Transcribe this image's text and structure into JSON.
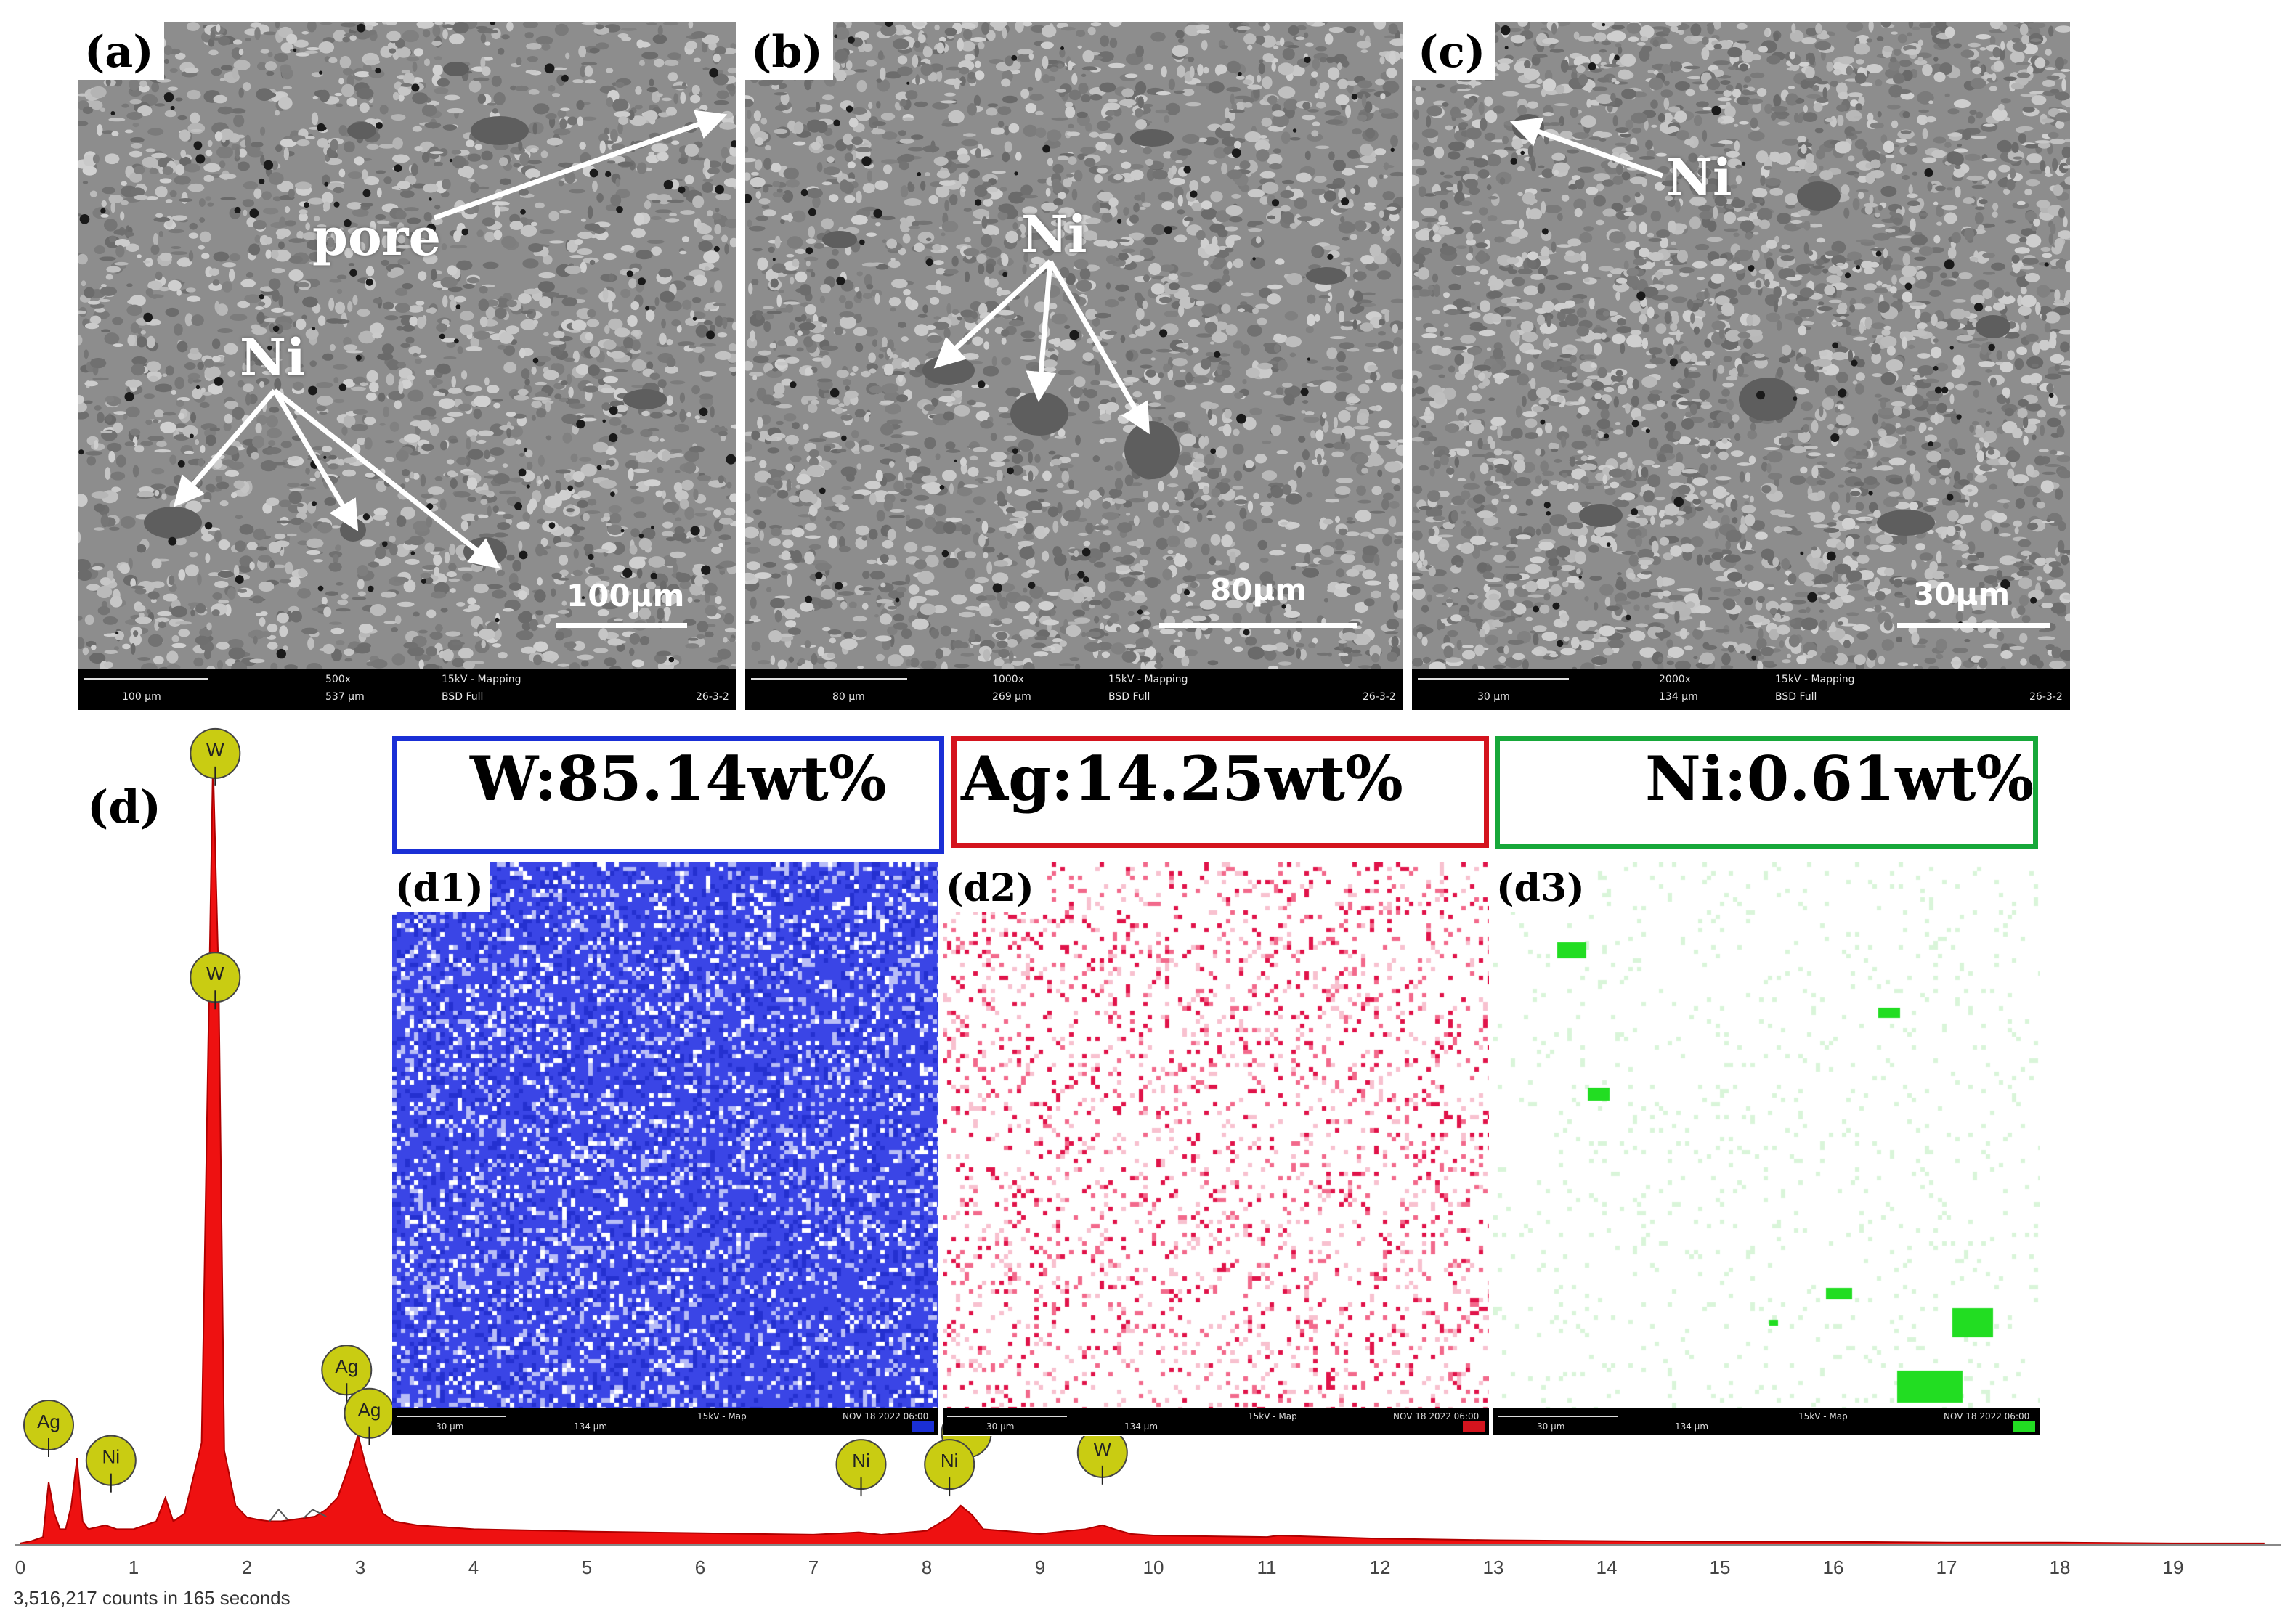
{
  "panels": {
    "a": {
      "label": "(a)",
      "scale_label": "100μm",
      "bar_left": "100 μm",
      "bar_mag": "500x",
      "bar_hfw": "537 μm",
      "bar_kv": "15kV - Mapping",
      "bar_det": "BSD Full",
      "bar_id": "26-3-2",
      "annotations": {
        "pore": "pore",
        "ni": "Ni"
      }
    },
    "b": {
      "label": "(b)",
      "scale_label": "80μm",
      "bar_left": "80 μm",
      "bar_mag": "1000x",
      "bar_hfw": "269 μm",
      "bar_kv": "15kV - Mapping",
      "bar_det": "BSD Full",
      "bar_id": "26-3-2",
      "annotations": {
        "ni": "Ni"
      }
    },
    "c": {
      "label": "(c)",
      "scale_label": "30μm",
      "bar_left": "30 μm",
      "bar_mag": "2000x",
      "bar_hfw": "134 μm",
      "bar_kv": "15kV - Mapping",
      "bar_det": "BSD Full",
      "bar_id": "26-3-2",
      "annotations": {
        "ni": "Ni"
      }
    }
  },
  "panel_d": {
    "label": "(d)"
  },
  "composition": [
    {
      "text": "W:85.14wt%",
      "color": "#1a2fd6"
    },
    {
      "text": "Ag:14.25wt%",
      "color": "#d4141e"
    },
    {
      "text": "Ni:0.61wt%",
      "color": "#17a83a"
    }
  ],
  "maps": [
    {
      "label": "(d1)",
      "bar_left": "30 μm",
      "bar_hfw": "134 μm",
      "bar_kv": "15kV - Map",
      "bar_date": "NOV 18 2022 06:00",
      "chip": "W",
      "base": "#3a45e6",
      "hi": "#ffffff"
    },
    {
      "label": "(d2)",
      "bar_left": "30 μm",
      "bar_hfw": "134 μm",
      "bar_kv": "15kV - Map",
      "bar_date": "NOV 18 2022 06:00",
      "chip": "Ag",
      "base": "#ffffff",
      "hi": "#e0144a"
    },
    {
      "label": "(d3)",
      "bar_left": "30 μm",
      "bar_hfw": "134 μm",
      "bar_kv": "15kV - Map",
      "bar_date": "NOV 18 2022 06:00",
      "chip": "Ni",
      "base": "#ffffff",
      "hi": "#22dd22"
    }
  ],
  "chart_data": {
    "type": "area",
    "title": "",
    "xlabel": "",
    "ylabel": "",
    "xlim": [
      0,
      20
    ],
    "x_ticks": [
      0,
      1,
      2,
      3,
      4,
      5,
      6,
      7,
      8,
      9,
      10,
      11,
      12,
      13,
      14,
      15,
      16,
      17,
      18,
      19
    ],
    "footer": "3,516,217 counts in 165 seconds",
    "fill_color": "#ee1111",
    "x": [
      0,
      0.1,
      0.2,
      0.25,
      0.3,
      0.35,
      0.4,
      0.45,
      0.5,
      0.55,
      0.6,
      0.75,
      0.85,
      1.0,
      1.2,
      1.28,
      1.35,
      1.45,
      1.6,
      1.7,
      1.75,
      1.8,
      1.9,
      2.0,
      2.1,
      2.2,
      2.3,
      2.4,
      2.5,
      2.6,
      2.7,
      2.8,
      2.9,
      2.98,
      3.05,
      3.12,
      3.2,
      3.3,
      3.5,
      4.0,
      5.0,
      6.0,
      7.0,
      7.4,
      7.6,
      8.0,
      8.2,
      8.3,
      8.4,
      8.5,
      9.0,
      9.4,
      9.55,
      9.7,
      9.8,
      10.0,
      11.0,
      11.1,
      12.0,
      13.0,
      14.0,
      15.0,
      16.0,
      17.0,
      18.0,
      19.0,
      19.8
    ],
    "y": [
      0.002,
      0.005,
      0.01,
      0.08,
      0.04,
      0.02,
      0.02,
      0.05,
      0.11,
      0.03,
      0.02,
      0.025,
      0.02,
      0.02,
      0.03,
      0.06,
      0.03,
      0.04,
      0.13,
      1.0,
      0.72,
      0.12,
      0.05,
      0.035,
      0.032,
      0.03,
      0.03,
      0.032,
      0.034,
      0.036,
      0.045,
      0.06,
      0.1,
      0.14,
      0.1,
      0.07,
      0.04,
      0.03,
      0.025,
      0.02,
      0.017,
      0.015,
      0.013,
      0.016,
      0.013,
      0.018,
      0.035,
      0.05,
      0.038,
      0.02,
      0.014,
      0.02,
      0.025,
      0.018,
      0.014,
      0.012,
      0.01,
      0.012,
      0.008,
      0.006,
      0.005,
      0.004,
      0.004,
      0.003,
      0.003,
      0.002,
      0.002
    ],
    "badges": [
      {
        "label": "Ag",
        "x": 0.25,
        "level": 0.11
      },
      {
        "label": "Ni",
        "x": 0.8,
        "level": 0.065
      },
      {
        "label": "W",
        "x": 1.72,
        "level": 0.965
      },
      {
        "label": "W",
        "x": 1.72,
        "level": 0.68
      },
      {
        "label": "Ag",
        "x": 2.88,
        "level": 0.18
      },
      {
        "label": "Ag",
        "x": 3.08,
        "level": 0.125
      },
      {
        "label": "Ni",
        "x": 7.42,
        "level": 0.06
      },
      {
        "label": "W",
        "x": 8.35,
        "level": 0.1
      },
      {
        "label": "Ni",
        "x": 8.2,
        "level": 0.06
      },
      {
        "label": "W",
        "x": 9.55,
        "level": 0.075
      }
    ]
  }
}
